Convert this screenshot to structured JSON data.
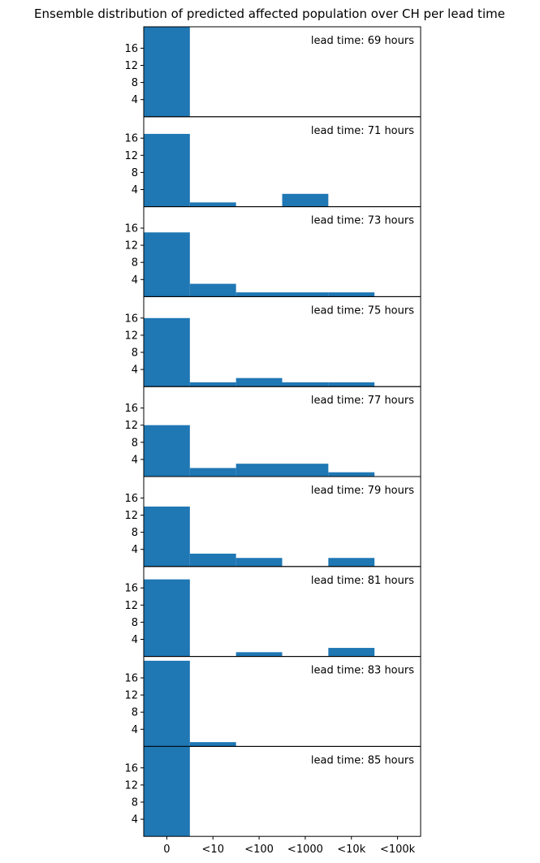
{
  "chart_data": {
    "type": "bar",
    "title": "Ensemble distribution of predicted affected population over CH per lead time",
    "xlabel": "",
    "ylabel": "",
    "categories": [
      "0",
      "<10",
      "<100",
      "<1000",
      "<10k",
      "<100k"
    ],
    "yticks": [
      4,
      8,
      12,
      16
    ],
    "ylim": [
      0,
      21
    ],
    "grid": false,
    "bar_color": "#1f77b4",
    "panels": [
      {
        "label": "lead time: 69 hours",
        "values": [
          21,
          0,
          0,
          0,
          0,
          0
        ]
      },
      {
        "label": "lead time: 71 hours",
        "values": [
          17,
          1,
          0,
          3,
          0,
          0
        ]
      },
      {
        "label": "lead time: 73 hours",
        "values": [
          15,
          3,
          1,
          1,
          1,
          0
        ]
      },
      {
        "label": "lead time: 75 hours",
        "values": [
          16,
          1,
          2,
          1,
          1,
          0
        ]
      },
      {
        "label": "lead time: 77 hours",
        "values": [
          12,
          2,
          3,
          3,
          1,
          0
        ]
      },
      {
        "label": "lead time: 79 hours",
        "values": [
          14,
          3,
          2,
          0,
          2,
          0
        ]
      },
      {
        "label": "lead time: 81 hours",
        "values": [
          18,
          0,
          1,
          0,
          2,
          0
        ]
      },
      {
        "label": "lead time: 83 hours",
        "values": [
          20,
          1,
          0,
          0,
          0,
          0
        ]
      },
      {
        "label": "lead time: 85 hours",
        "values": [
          21,
          0,
          0,
          0,
          0,
          0
        ]
      }
    ]
  }
}
